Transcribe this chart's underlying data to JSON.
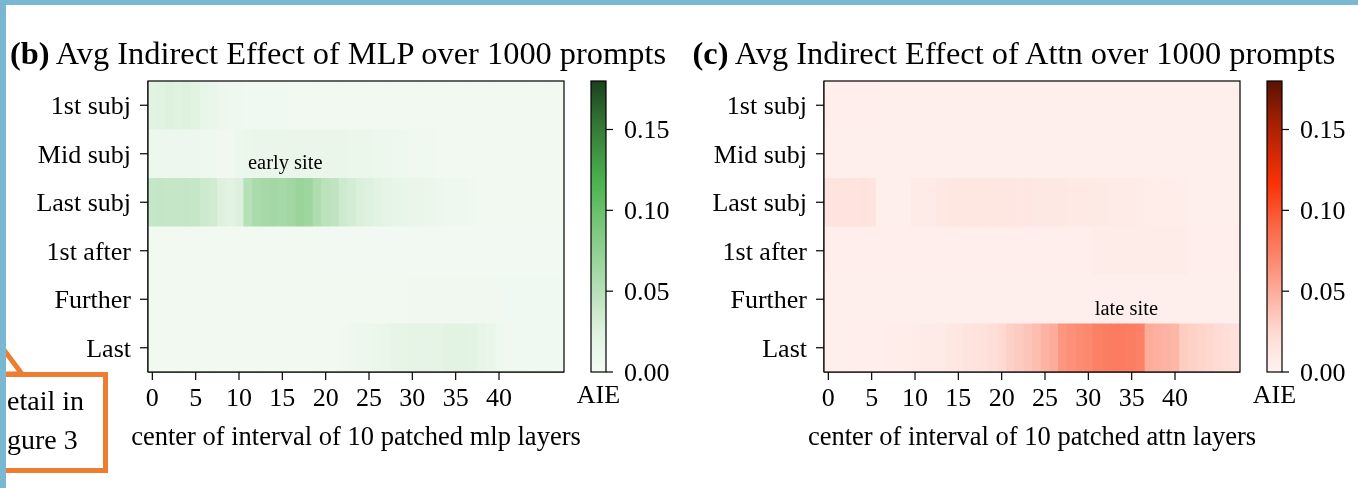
{
  "chart_data": [
    {
      "type": "heatmap",
      "title": "(b) Avg Indirect Effect of MLP over 1000 prompts",
      "xlabel": "center of interval of 10 patched mlp layers",
      "clabel": "AIE",
      "color": "#74c476",
      "x": [
        0,
        1,
        2,
        3,
        4,
        5,
        6,
        7,
        8,
        9,
        10,
        11,
        12,
        13,
        14,
        15,
        16,
        17,
        18,
        19,
        20,
        21,
        22,
        23,
        24,
        25,
        26,
        27,
        28,
        29,
        30,
        31,
        32,
        33,
        34,
        35,
        36,
        37,
        38,
        39,
        40,
        41,
        42,
        43,
        44,
        45,
        46,
        47
      ],
      "xlim": [
        -0.5,
        47.5
      ],
      "xticks": [
        0,
        5,
        10,
        15,
        20,
        25,
        30,
        35,
        40
      ],
      "y_categories": [
        "1st subj",
        "Mid subj",
        "Last subj",
        "1st after",
        "Further",
        "Last"
      ],
      "cells": [
        [
          0.022,
          0.024,
          0.025,
          0.024,
          0.025,
          0.023,
          0.015,
          0.014,
          0.009,
          0.008,
          0.007,
          0.005,
          0.005,
          0.005,
          0.005,
          0.005,
          0.004,
          0.004,
          0.004,
          0.004,
          0.004,
          0.004,
          0.004,
          0.004,
          0.004,
          0.004,
          0.004,
          0.004,
          0.004,
          0.004,
          0.004,
          0.004,
          0.004,
          0.004,
          0.004,
          0.004,
          0.004,
          0.004,
          0.004,
          0.004,
          0.004,
          0.004,
          0.004,
          0.004,
          0.004,
          0.004,
          0.004,
          0.004
        ],
        [
          0.01,
          0.009,
          0.009,
          0.009,
          0.009,
          0.009,
          0.008,
          0.008,
          0.006,
          0.006,
          0.01,
          0.011,
          0.012,
          0.012,
          0.012,
          0.013,
          0.013,
          0.013,
          0.013,
          0.012,
          0.012,
          0.012,
          0.012,
          0.011,
          0.011,
          0.011,
          0.01,
          0.01,
          0.009,
          0.007,
          0.006,
          0.006,
          0.005,
          0.004,
          0.004,
          0.004,
          0.004,
          0.004,
          0.004,
          0.004,
          0.004,
          0.004,
          0.004,
          0.004,
          0.004,
          0.004,
          0.004,
          0.004
        ],
        [
          0.04,
          0.042,
          0.04,
          0.04,
          0.041,
          0.04,
          0.036,
          0.034,
          0.025,
          0.022,
          0.026,
          0.05,
          0.058,
          0.06,
          0.062,
          0.06,
          0.063,
          0.068,
          0.066,
          0.055,
          0.047,
          0.044,
          0.036,
          0.032,
          0.027,
          0.025,
          0.022,
          0.02,
          0.016,
          0.015,
          0.013,
          0.012,
          0.011,
          0.009,
          0.008,
          0.008,
          0.007,
          0.006,
          0.004,
          0.004,
          0.004,
          0.004,
          0.004,
          0.004,
          0.004,
          0.004,
          0.004,
          0.004
        ],
        [
          0.004,
          0.004,
          0.004,
          0.004,
          0.004,
          0.004,
          0.004,
          0.004,
          0.004,
          0.004,
          0.004,
          0.004,
          0.004,
          0.004,
          0.004,
          0.004,
          0.004,
          0.004,
          0.004,
          0.004,
          0.003,
          0.003,
          0.003,
          0.003,
          0.003,
          0.003,
          0.003,
          0.003,
          0.003,
          0.003,
          0.003,
          0.003,
          0.003,
          0.003,
          0.003,
          0.003,
          0.003,
          0.003,
          0.003,
          0.003,
          0.003,
          0.003,
          0.003,
          0.003,
          0.003,
          0.003,
          0.003,
          0.003
        ],
        [
          0.004,
          0.004,
          0.004,
          0.004,
          0.004,
          0.004,
          0.004,
          0.004,
          0.004,
          0.004,
          0.004,
          0.004,
          0.004,
          0.004,
          0.004,
          0.004,
          0.004,
          0.004,
          0.004,
          0.004,
          0.004,
          0.004,
          0.004,
          0.004,
          0.004,
          0.004,
          0.004,
          0.004,
          0.004,
          0.004,
          0.006,
          0.006,
          0.006,
          0.006,
          0.006,
          0.006,
          0.006,
          0.006,
          0.006,
          0.006,
          0.006,
          0.005,
          0.005,
          0.005,
          0.005,
          0.005,
          0.005,
          0.005
        ],
        [
          0.004,
          0.004,
          0.004,
          0.004,
          0.004,
          0.004,
          0.004,
          0.004,
          0.004,
          0.004,
          0.004,
          0.004,
          0.004,
          0.004,
          0.004,
          0.004,
          0.004,
          0.004,
          0.004,
          0.004,
          0.004,
          0.004,
          0.006,
          0.008,
          0.009,
          0.01,
          0.011,
          0.012,
          0.016,
          0.017,
          0.018,
          0.018,
          0.019,
          0.02,
          0.022,
          0.023,
          0.022,
          0.021,
          0.016,
          0.013,
          0.01,
          0.006,
          0.005,
          0.005,
          0.005,
          0.005,
          0.005,
          0.005
        ]
      ],
      "clim": [
        0,
        0.18
      ],
      "cticks": [
        {
          "value": 0,
          "label": "0.00"
        },
        {
          "value": 0.05,
          "label": "0.05"
        },
        {
          "value": 0.1,
          "label": "0.10"
        },
        {
          "value": 0.15,
          "label": "0.15"
        }
      ],
      "annotations": [
        "early site",
        "etail in gure 3"
      ]
    },
    {
      "type": "heatmap",
      "title": "(c) Avg Indirect Effect of Attn over 1000 prompts",
      "xlabel": "center of interval of 10 patched attn layers",
      "clabel": "AIE",
      "color": "#fb6a4a",
      "x": [
        0,
        1,
        2,
        3,
        4,
        5,
        6,
        7,
        8,
        9,
        10,
        11,
        12,
        13,
        14,
        15,
        16,
        17,
        18,
        19,
        20,
        21,
        22,
        23,
        24,
        25,
        26,
        27,
        28,
        29,
        30,
        31,
        32,
        33,
        34,
        35,
        36,
        37,
        38,
        39,
        40,
        41,
        42,
        43,
        44,
        45,
        46,
        47
      ],
      "xlim": [
        -0.5,
        47.5
      ],
      "xticks": [
        0,
        5,
        10,
        15,
        20,
        25,
        30,
        35,
        40
      ],
      "y_categories": [
        "1st subj",
        "Mid subj",
        "Last subj",
        "1st after",
        "Further",
        "Last"
      ],
      "cells": [
        [
          0.005,
          0.005,
          0.005,
          0.005,
          0.005,
          0.005,
          0.004,
          0.004,
          0.004,
          0.004,
          0.004,
          0.004,
          0.004,
          0.004,
          0.004,
          0.004,
          0.004,
          0.004,
          0.004,
          0.004,
          0.004,
          0.004,
          0.004,
          0.004,
          0.004,
          0.004,
          0.004,
          0.004,
          0.004,
          0.004,
          0.004,
          0.004,
          0.004,
          0.004,
          0.004,
          0.004,
          0.004,
          0.004,
          0.004,
          0.004,
          0.004,
          0.004,
          0.004,
          0.004,
          0.004,
          0.004,
          0.004,
          0.004
        ],
        [
          0.004,
          0.004,
          0.004,
          0.004,
          0.004,
          0.004,
          0.004,
          0.004,
          0.004,
          0.004,
          0.004,
          0.004,
          0.004,
          0.004,
          0.004,
          0.004,
          0.004,
          0.004,
          0.004,
          0.004,
          0.004,
          0.004,
          0.004,
          0.004,
          0.004,
          0.004,
          0.004,
          0.004,
          0.004,
          0.004,
          0.004,
          0.004,
          0.004,
          0.004,
          0.004,
          0.004,
          0.004,
          0.004,
          0.004,
          0.004,
          0.004,
          0.004,
          0.004,
          0.004,
          0.004,
          0.004,
          0.004,
          0.004
        ],
        [
          0.016,
          0.017,
          0.016,
          0.016,
          0.017,
          0.016,
          0.004,
          0.004,
          0.004,
          0.004,
          0.008,
          0.008,
          0.009,
          0.012,
          0.013,
          0.014,
          0.014,
          0.014,
          0.014,
          0.014,
          0.013,
          0.013,
          0.013,
          0.013,
          0.012,
          0.012,
          0.012,
          0.012,
          0.011,
          0.011,
          0.01,
          0.01,
          0.01,
          0.009,
          0.009,
          0.009,
          0.007,
          0.006,
          0.006,
          0.006,
          0.006,
          0.006,
          0.004,
          0.004,
          0.004,
          0.004,
          0.004,
          0.004
        ],
        [
          0.005,
          0.005,
          0.005,
          0.005,
          0.005,
          0.005,
          0.005,
          0.005,
          0.005,
          0.005,
          0.005,
          0.005,
          0.005,
          0.005,
          0.005,
          0.005,
          0.005,
          0.005,
          0.005,
          0.005,
          0.005,
          0.005,
          0.005,
          0.005,
          0.005,
          0.005,
          0.005,
          0.005,
          0.005,
          0.005,
          0.005,
          0.007,
          0.007,
          0.007,
          0.007,
          0.007,
          0.007,
          0.007,
          0.007,
          0.007,
          0.007,
          0.007,
          0.005,
          0.005,
          0.005,
          0.005,
          0.005,
          0.005
        ],
        [
          0.004,
          0.004,
          0.004,
          0.004,
          0.004,
          0.004,
          0.004,
          0.004,
          0.004,
          0.004,
          0.004,
          0.004,
          0.004,
          0.004,
          0.004,
          0.004,
          0.004,
          0.004,
          0.004,
          0.004,
          0.004,
          0.004,
          0.004,
          0.004,
          0.004,
          0.004,
          0.004,
          0.004,
          0.004,
          0.004,
          0.004,
          0.004,
          0.004,
          0.004,
          0.004,
          0.004,
          0.004,
          0.004,
          0.004,
          0.004,
          0.004,
          0.004,
          0.004,
          0.004,
          0.004,
          0.004,
          0.004,
          0.004
        ],
        [
          0.004,
          0.004,
          0.004,
          0.005,
          0.005,
          0.005,
          0.005,
          0.006,
          0.006,
          0.006,
          0.007,
          0.008,
          0.008,
          0.009,
          0.012,
          0.014,
          0.016,
          0.018,
          0.02,
          0.022,
          0.025,
          0.03,
          0.033,
          0.036,
          0.04,
          0.046,
          0.05,
          0.062,
          0.065,
          0.068,
          0.07,
          0.075,
          0.076,
          0.077,
          0.077,
          0.076,
          0.074,
          0.05,
          0.048,
          0.046,
          0.044,
          0.032,
          0.03,
          0.028,
          0.026,
          0.024,
          0.022,
          0.02
        ]
      ],
      "clim": [
        0,
        0.18
      ],
      "cticks": [
        {
          "value": 0,
          "label": "0.00"
        },
        {
          "value": 0.05,
          "label": "0.05"
        },
        {
          "value": 0.1,
          "label": "0.10"
        },
        {
          "value": 0.15,
          "label": "0.15"
        }
      ],
      "annotations": [
        "late site"
      ]
    }
  ]
}
